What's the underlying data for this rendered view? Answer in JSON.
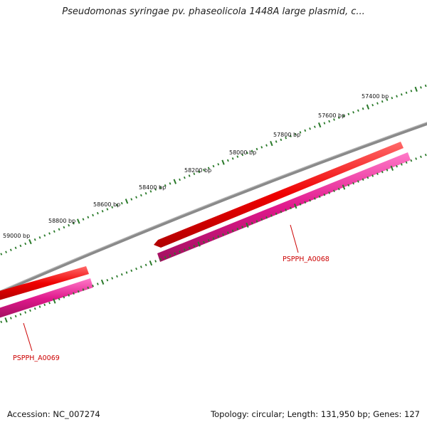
{
  "title": "Pseudomonas syringae pv. phaseolicola 1448A large plasmid, c...",
  "ticks": [
    {
      "label": "57400 bp",
      "bp": 57400
    },
    {
      "label": "57600 bp",
      "bp": 57600
    },
    {
      "label": "57800 bp",
      "bp": 57800
    },
    {
      "label": "58000 bp",
      "bp": 58000
    },
    {
      "label": "58200 bp",
      "bp": 58200
    },
    {
      "label": "58400 bp",
      "bp": 58400
    },
    {
      "label": "58600 bp",
      "bp": 58600
    },
    {
      "label": "58800 bp",
      "bp": 58800
    },
    {
      "label": "59000 bp",
      "bp": 59000
    }
  ],
  "genes": [
    {
      "name": "PSPPH_A0068",
      "color": "#ee0000",
      "cds_color": "#e0188c"
    },
    {
      "name": "PSPPH_A0069",
      "color": "#ee0000",
      "cds_color": "#e0188c"
    }
  ],
  "colors": {
    "backbone": "#808080",
    "tick": "#2a7a2a",
    "gene": "#ee0000",
    "cds": "#e0188c",
    "label": "#cc0000"
  },
  "footer": {
    "accession": "Accession: NC_007274",
    "summary": "Topology: circular; Length: 131,950 bp; Genes: 127"
  }
}
